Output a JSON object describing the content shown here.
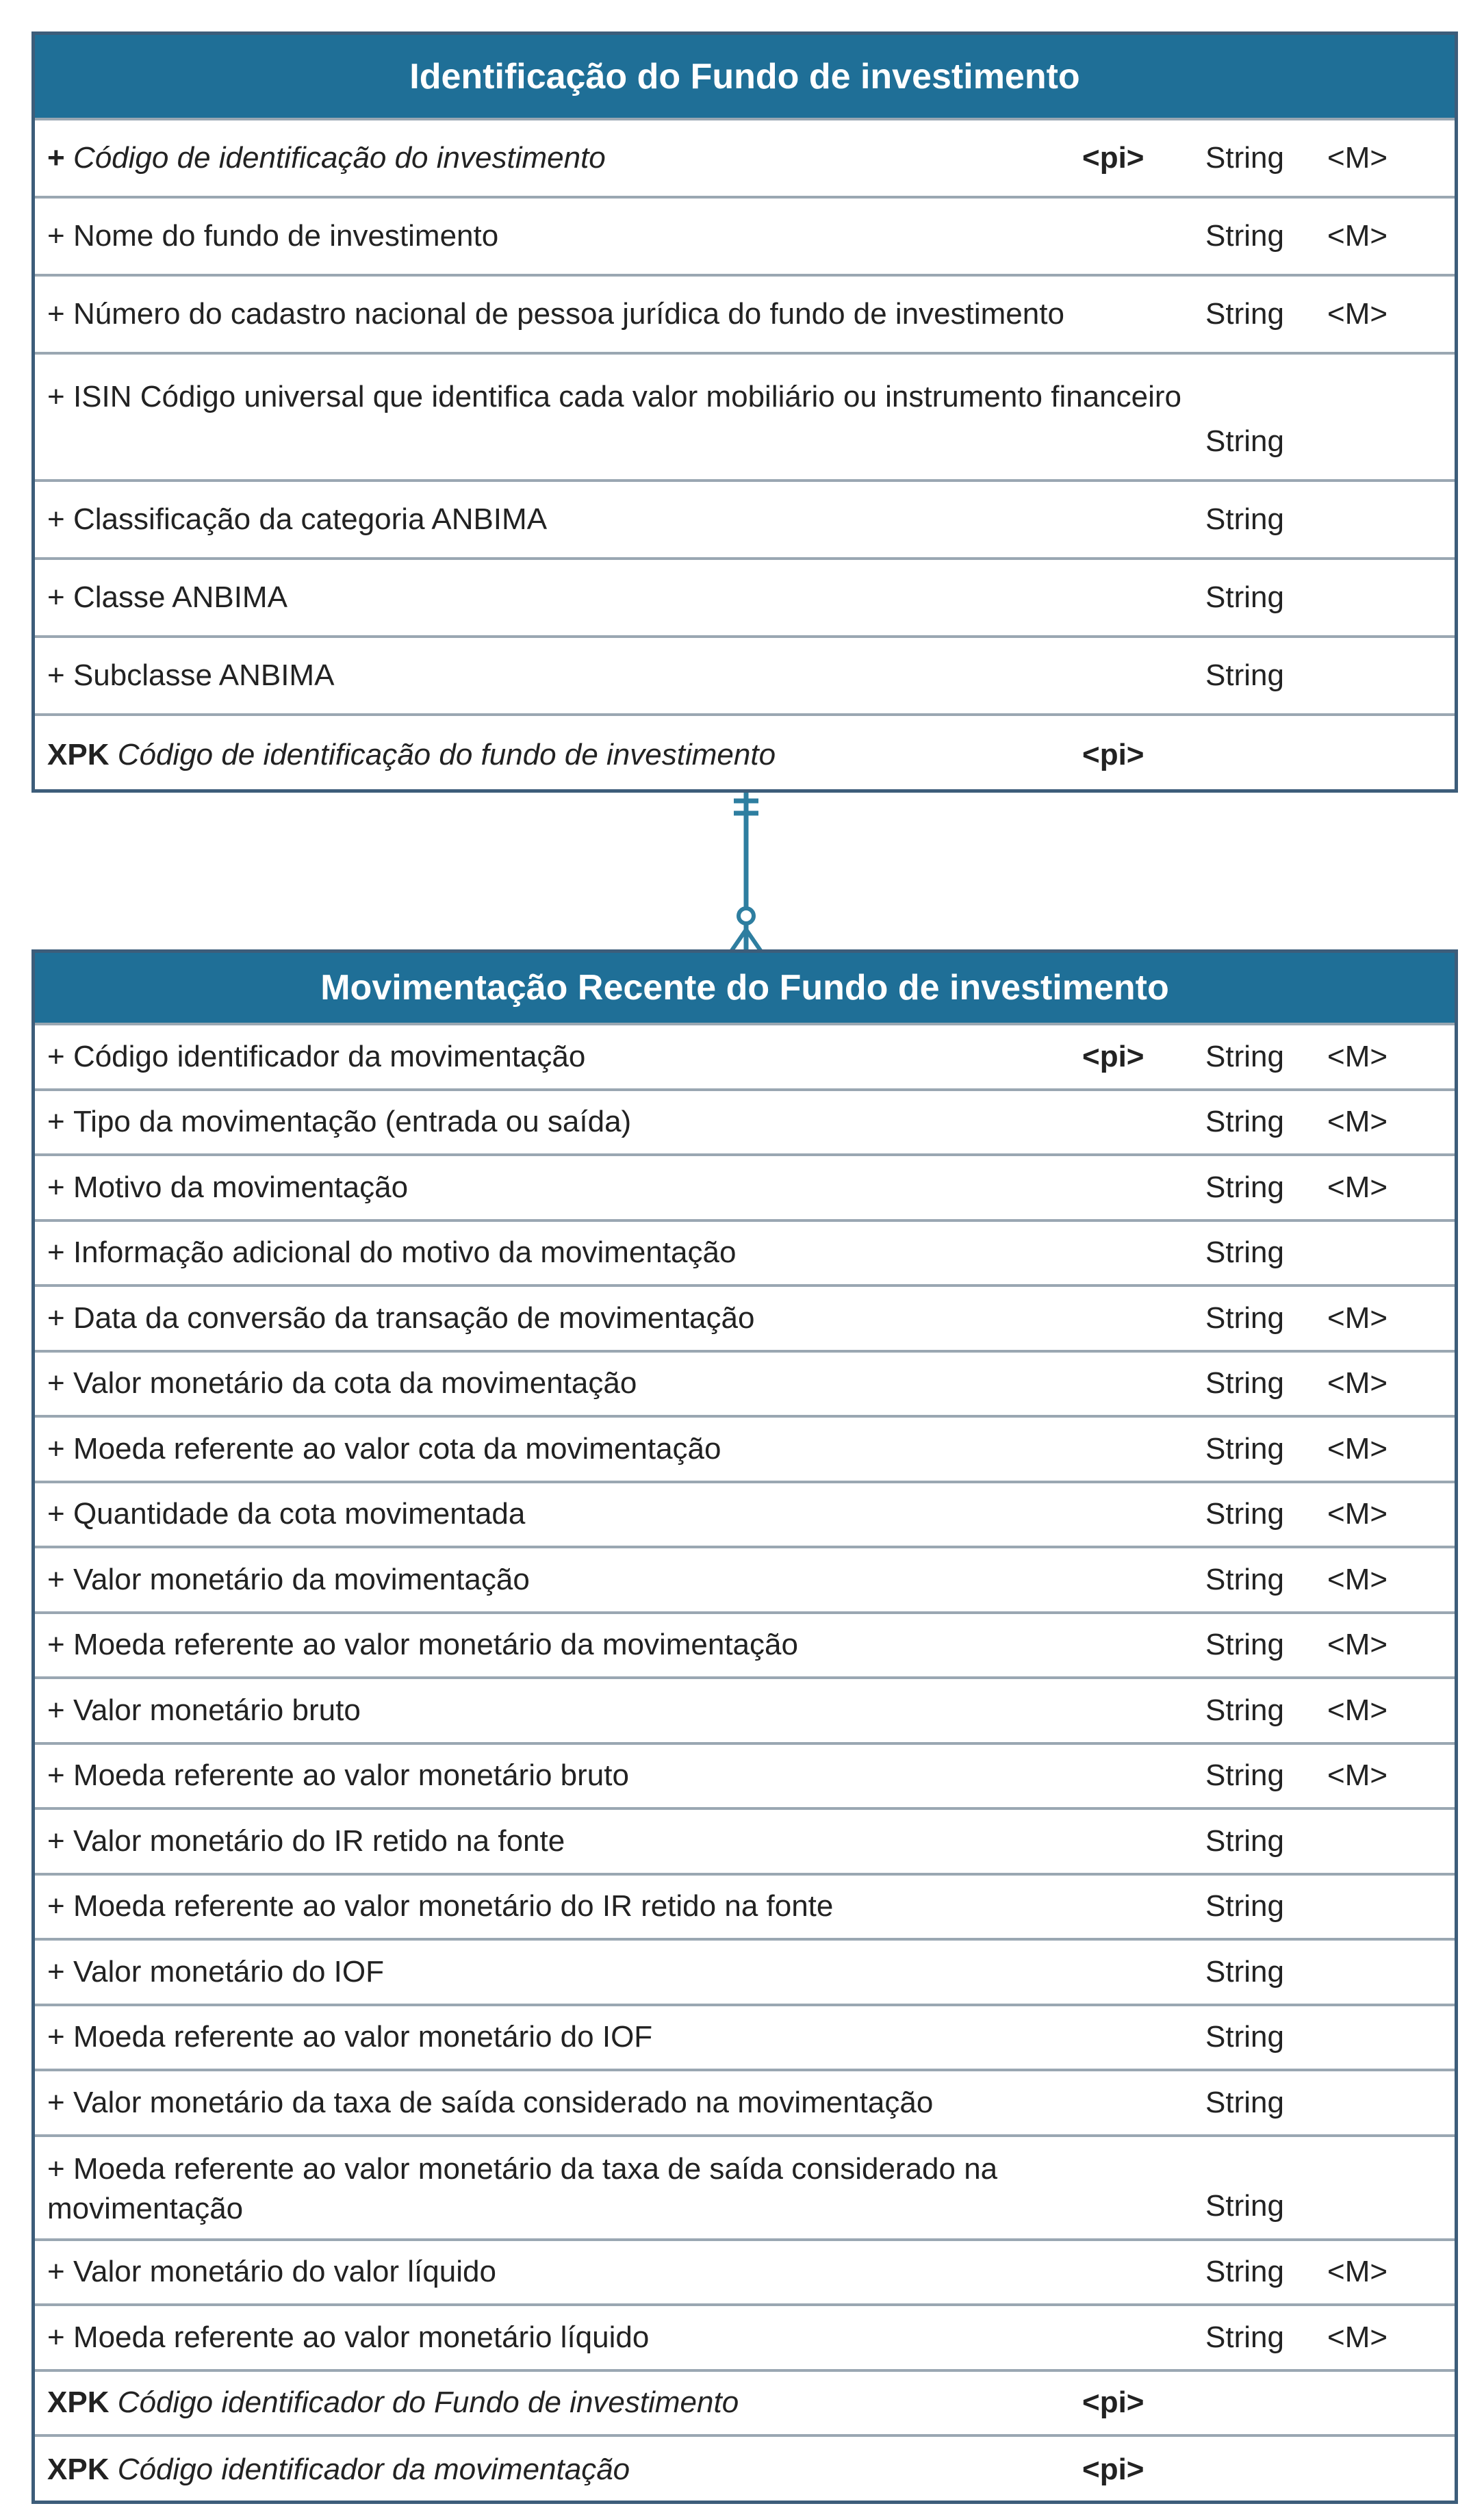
{
  "colors": {
    "header_bg": "#1f6f97",
    "border": "#3d5d7a",
    "divider": "#9aa7b2",
    "connector": "#2e7ea0"
  },
  "entities": [
    {
      "title": "Identificação do Fundo de investimento",
      "attributes": [
        {
          "prefix": "+",
          "name": "Código de identificação do investimento",
          "pi": "<pi>",
          "type": "String",
          "mandatory": "<M>"
        },
        {
          "prefix": "+",
          "name": "Nome do fundo de investimento",
          "pi": "",
          "type": "String",
          "mandatory": "<M>"
        },
        {
          "prefix": "+",
          "name": "Número do cadastro nacional de pessoa jurídica do fundo de investimento",
          "pi": "",
          "type": "String",
          "mandatory": "<M>"
        },
        {
          "prefix": "+",
          "name": "ISIN Código universal que identifica cada valor mobiliário ou instrumento financeiro",
          "pi": "",
          "type": "String",
          "mandatory": ""
        },
        {
          "prefix": "+",
          "name": "Classificação da categoria ANBIMA",
          "pi": "",
          "type": "String",
          "mandatory": ""
        },
        {
          "prefix": "+",
          "name": "Classe ANBIMA",
          "pi": "",
          "type": "String",
          "mandatory": ""
        },
        {
          "prefix": "+",
          "name": "Subclasse ANBIMA",
          "pi": "",
          "type": "String",
          "mandatory": ""
        }
      ],
      "keys": [
        {
          "prefix": "XPK",
          "name": "Código de identificação do fundo de investimento",
          "pi": "<pi>"
        }
      ]
    },
    {
      "title": "Movimentação Recente do Fundo de investimento",
      "attributes": [
        {
          "prefix": "+",
          "name": "Código identificador da movimentação",
          "pi": "<pi>",
          "type": "String",
          "mandatory": "<M>"
        },
        {
          "prefix": "+",
          "name": "Tipo da movimentação (entrada ou saída)",
          "pi": "",
          "type": "String",
          "mandatory": "<M>"
        },
        {
          "prefix": "+",
          "name": "Motivo da movimentação",
          "pi": "",
          "type": "String",
          "mandatory": "<M>"
        },
        {
          "prefix": "+",
          "name": "Informação adicional do motivo da movimentação",
          "pi": "",
          "type": "String",
          "mandatory": ""
        },
        {
          "prefix": "+",
          "name": "Data da conversão da transação de movimentação",
          "pi": "",
          "type": "String",
          "mandatory": "<M>"
        },
        {
          "prefix": "+",
          "name": "Valor monetário da cota da movimentação",
          "pi": "",
          "type": "String",
          "mandatory": "<M>"
        },
        {
          "prefix": "+",
          "name": "Moeda referente ao valor cota da movimentação",
          "pi": "",
          "type": "String",
          "mandatory": "<M>"
        },
        {
          "prefix": "+",
          "name": "Quantidade da cota movimentada",
          "pi": "",
          "type": "String",
          "mandatory": "<M>"
        },
        {
          "prefix": "+",
          "name": "Valor monetário da movimentação",
          "pi": "",
          "type": "String",
          "mandatory": "<M>"
        },
        {
          "prefix": "+",
          "name": "Moeda referente ao valor monetário da movimentação",
          "pi": "",
          "type": "String",
          "mandatory": "<M>"
        },
        {
          "prefix": "+",
          "name": "Valor monetário bruto",
          "pi": "",
          "type": "String",
          "mandatory": "<M>"
        },
        {
          "prefix": "+",
          "name": "Moeda referente ao valor monetário bruto",
          "pi": "",
          "type": "String",
          "mandatory": "<M>"
        },
        {
          "prefix": "+",
          "name": "Valor monetário do IR retido na fonte",
          "pi": "",
          "type": "String",
          "mandatory": ""
        },
        {
          "prefix": "+",
          "name": "Moeda referente ao valor monetário do IR retido na fonte",
          "pi": "",
          "type": "String",
          "mandatory": ""
        },
        {
          "prefix": "+",
          "name": "Valor monetário do IOF",
          "pi": "",
          "type": "String",
          "mandatory": ""
        },
        {
          "prefix": "+",
          "name": "Moeda referente ao valor monetário do IOF",
          "pi": "",
          "type": "String",
          "mandatory": ""
        },
        {
          "prefix": "+",
          "name": "Valor monetário da taxa de saída considerado na movimentação",
          "pi": "",
          "type": "String",
          "mandatory": ""
        },
        {
          "prefix": "+",
          "name": "Moeda referente ao valor monetário da taxa de saída considerado na movimentação",
          "pi": "",
          "type": "String",
          "mandatory": ""
        },
        {
          "prefix": "+",
          "name": "Valor monetário do valor líquido",
          "pi": "",
          "type": "String",
          "mandatory": "<M>"
        },
        {
          "prefix": "+",
          "name": "Moeda referente ao valor monetário líquido",
          "pi": "",
          "type": "String",
          "mandatory": "<M>"
        }
      ],
      "keys": [
        {
          "prefix": "XPK",
          "name": "Código identificador do Fundo de investimento",
          "pi": "<pi>"
        },
        {
          "prefix": "XPK",
          "name": "Código identificador da movimentação",
          "pi": "<pi>"
        }
      ]
    }
  ]
}
